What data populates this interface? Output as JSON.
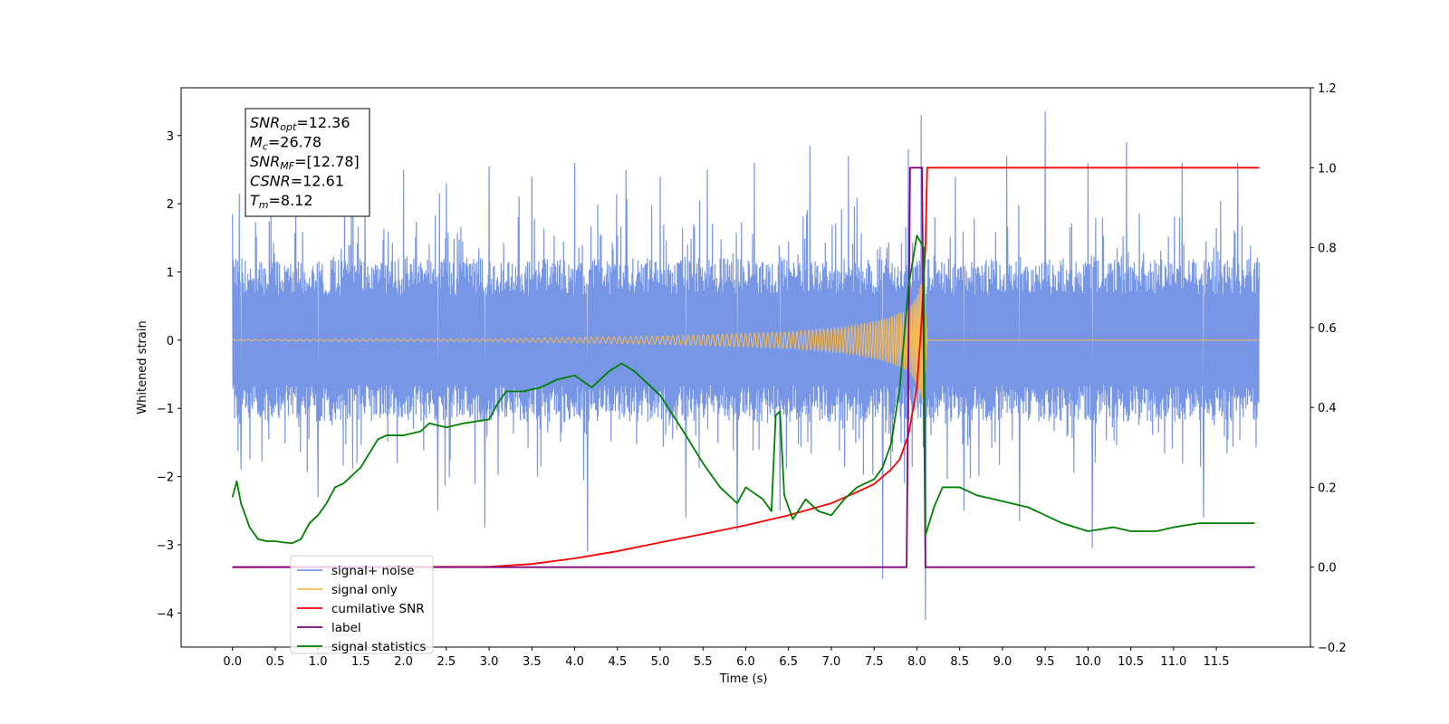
{
  "chart_data": {
    "type": "line",
    "xlabel": "Time (s)",
    "ylabel_left": "Whitened strain",
    "ylabel_right": "",
    "xlim": [
      -0.6,
      12.6
    ],
    "ylim_left": [
      -4.5,
      3.7
    ],
    "ylim_right": [
      -0.2,
      1.2
    ],
    "x_ticks": [
      "0.0",
      "0.5",
      "1.0",
      "1.5",
      "2.0",
      "2.5",
      "3.0",
      "3.5",
      "4.0",
      "4.5",
      "5.0",
      "5.5",
      "6.0",
      "6.5",
      "7.0",
      "7.5",
      "8.0",
      "8.5",
      "9.0",
      "9.5",
      "10.0",
      "10.5",
      "11.0",
      "11.5"
    ],
    "y_ticks_left": [
      "3",
      "2",
      "1",
      "0",
      "−1",
      "−2",
      "−3",
      "−4"
    ],
    "y_ticks_right": [
      "1.2",
      "1.0",
      "0.8",
      "0.6",
      "0.4",
      "0.2",
      "0.0",
      "−0.2"
    ],
    "grid": false,
    "legend_position": "lower-left",
    "stats": [
      {
        "sym": "SNR",
        "sub": "opt",
        "val": "=12.36"
      },
      {
        "sym": "M",
        "sub": "c",
        "val": "=26.78"
      },
      {
        "sym": "SNR",
        "sub": "MF",
        "val": "=[12.78]"
      },
      {
        "sym": "CSNR",
        "sub": "",
        "val": "=12.61"
      },
      {
        "sym": "T",
        "sub": "m",
        "val": "=8.12"
      }
    ],
    "series": [
      {
        "name": "signal+ noise",
        "axis": "left",
        "color": "#7896e6",
        "description_level": "noise band approx. ±1.2 (envelope) with spikes",
        "noise_x_range": [
          0.0,
          12.0
        ],
        "noise_envelope_upper": 1.2,
        "noise_envelope_lower": -1.2,
        "spikes": [
          {
            "x": 0.0,
            "y": 1.85
          },
          {
            "x": 0.45,
            "y": 2.1
          },
          {
            "x": 1.0,
            "y": 2.2
          },
          {
            "x": 1.55,
            "y": 2.45
          },
          {
            "x": 2.0,
            "y": 2.5
          },
          {
            "x": 2.5,
            "y": 2.3
          },
          {
            "x": 3.0,
            "y": 2.55
          },
          {
            "x": 3.5,
            "y": 2.4
          },
          {
            "x": 4.0,
            "y": 2.6
          },
          {
            "x": 4.6,
            "y": 2.5
          },
          {
            "x": 5.0,
            "y": 2.4
          },
          {
            "x": 5.55,
            "y": 2.5
          },
          {
            "x": 6.1,
            "y": 2.6
          },
          {
            "x": 6.75,
            "y": 2.85
          },
          {
            "x": 7.2,
            "y": 2.7
          },
          {
            "x": 7.9,
            "y": 2.8
          },
          {
            "x": 8.05,
            "y": 3.3
          },
          {
            "x": 8.45,
            "y": 2.4
          },
          {
            "x": 9.05,
            "y": 2.7
          },
          {
            "x": 9.5,
            "y": 3.35
          },
          {
            "x": 10.0,
            "y": 2.6
          },
          {
            "x": 10.45,
            "y": 2.9
          },
          {
            "x": 11.1,
            "y": 2.6
          },
          {
            "x": 11.75,
            "y": 2.6
          },
          {
            "x": 0.1,
            "y": -1.9
          },
          {
            "x": 1.0,
            "y": -2.3
          },
          {
            "x": 2.4,
            "y": -2.5
          },
          {
            "x": 2.95,
            "y": -2.75
          },
          {
            "x": 4.15,
            "y": -3.1
          },
          {
            "x": 5.3,
            "y": -2.6
          },
          {
            "x": 5.9,
            "y": -2.8
          },
          {
            "x": 6.4,
            "y": -2.5
          },
          {
            "x": 7.6,
            "y": -3.5
          },
          {
            "x": 8.1,
            "y": -4.1
          },
          {
            "x": 8.55,
            "y": -2.5
          },
          {
            "x": 9.2,
            "y": -2.65
          },
          {
            "x": 10.05,
            "y": -3.05
          },
          {
            "x": 11.35,
            "y": -2.6
          }
        ]
      },
      {
        "name": "signal only",
        "axis": "left",
        "color": "#f5b955",
        "chirp_amplitude": [
          {
            "x": 0.0,
            "y": 0.01
          },
          {
            "x": 3.0,
            "y": 0.02
          },
          {
            "x": 5.0,
            "y": 0.06
          },
          {
            "x": 6.5,
            "y": 0.12
          },
          {
            "x": 7.2,
            "y": 0.2
          },
          {
            "x": 7.6,
            "y": 0.3
          },
          {
            "x": 7.9,
            "y": 0.45
          },
          {
            "x": 8.0,
            "y": 0.65
          },
          {
            "x": 8.08,
            "y": 0.95
          },
          {
            "x": 8.12,
            "y": 0.0
          },
          {
            "x": 12.0,
            "y": 0.0
          }
        ]
      },
      {
        "name": "cumilative SNR",
        "axis": "right",
        "color": "#ff0000",
        "x": [
          0.0,
          3.0,
          3.5,
          4.0,
          4.5,
          5.0,
          5.5,
          6.0,
          6.5,
          7.0,
          7.3,
          7.5,
          7.7,
          7.8,
          7.9,
          8.0,
          8.05,
          8.1,
          8.12,
          12.0
        ],
        "y": [
          0.0,
          0.001,
          0.008,
          0.022,
          0.04,
          0.062,
          0.083,
          0.105,
          0.13,
          0.16,
          0.188,
          0.208,
          0.245,
          0.27,
          0.33,
          0.45,
          0.6,
          0.8,
          1.0,
          1.0
        ]
      },
      {
        "name": "label",
        "axis": "right",
        "color": "#800080",
        "x": [
          0.0,
          7.88,
          7.92,
          8.06,
          8.1,
          11.95
        ],
        "y": [
          0.0,
          0.0,
          1.0,
          1.0,
          0.0,
          0.0
        ]
      },
      {
        "name": "signal statistics",
        "axis": "right",
        "color": "#008000",
        "x": [
          0.0,
          0.05,
          0.1,
          0.2,
          0.3,
          0.4,
          0.5,
          0.6,
          0.7,
          0.8,
          0.9,
          1.0,
          1.1,
          1.2,
          1.3,
          1.5,
          1.7,
          1.8,
          2.0,
          2.2,
          2.3,
          2.5,
          2.7,
          3.0,
          3.1,
          3.2,
          3.4,
          3.6,
          3.8,
          4.0,
          4.2,
          4.4,
          4.55,
          4.7,
          5.0,
          5.3,
          5.5,
          5.7,
          5.8,
          5.9,
          6.0,
          6.2,
          6.3,
          6.35,
          6.4,
          6.45,
          6.55,
          6.7,
          6.85,
          7.0,
          7.15,
          7.3,
          7.5,
          7.6,
          7.7,
          7.8,
          7.9,
          8.0,
          8.08,
          8.1,
          8.2,
          8.3,
          8.5,
          8.7,
          8.9,
          9.1,
          9.3,
          9.5,
          9.7,
          10.0,
          10.3,
          10.5,
          10.8,
          11.0,
          11.3,
          11.6,
          11.95
        ],
        "y": [
          0.175,
          0.215,
          0.16,
          0.1,
          0.07,
          0.065,
          0.065,
          0.062,
          0.06,
          0.07,
          0.11,
          0.13,
          0.16,
          0.2,
          0.21,
          0.25,
          0.32,
          0.33,
          0.33,
          0.34,
          0.36,
          0.35,
          0.36,
          0.37,
          0.41,
          0.44,
          0.44,
          0.45,
          0.47,
          0.48,
          0.45,
          0.49,
          0.51,
          0.49,
          0.43,
          0.33,
          0.26,
          0.2,
          0.18,
          0.16,
          0.2,
          0.17,
          0.14,
          0.38,
          0.39,
          0.18,
          0.12,
          0.17,
          0.14,
          0.13,
          0.17,
          0.2,
          0.22,
          0.25,
          0.31,
          0.45,
          0.7,
          0.83,
          0.8,
          0.08,
          0.15,
          0.2,
          0.2,
          0.18,
          0.17,
          0.16,
          0.15,
          0.13,
          0.11,
          0.09,
          0.1,
          0.09,
          0.09,
          0.1,
          0.11,
          0.11,
          0.11
        ]
      }
    ]
  },
  "legend": {
    "items": [
      {
        "label": "signal+ noise",
        "color": "#7896e6"
      },
      {
        "label": "signal only",
        "color": "#f5b955"
      },
      {
        "label": "cumilative SNR",
        "color": "#ff0000"
      },
      {
        "label": "label",
        "color": "#800080"
      },
      {
        "label": "signal statistics",
        "color": "#008000"
      }
    ]
  }
}
